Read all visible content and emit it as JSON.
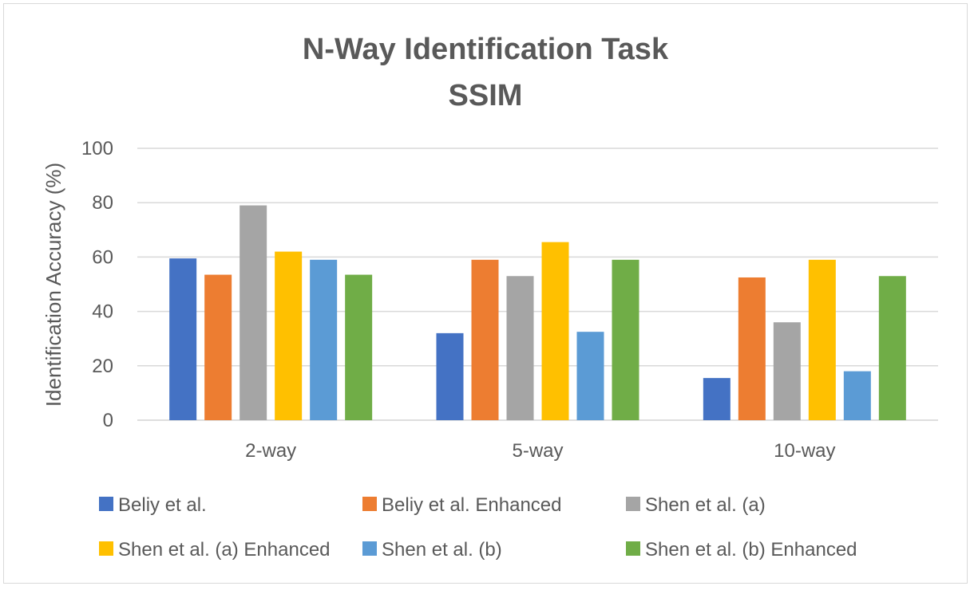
{
  "chart_data": {
    "type": "bar",
    "title": "N-Way Identification Task",
    "subtitle": "SSIM",
    "xlabel": "",
    "ylabel": "Identification Accuracy (%)",
    "ylim": [
      0,
      100
    ],
    "yticks": [
      "0",
      "20",
      "40",
      "60",
      "80",
      "100"
    ],
    "grid": true,
    "legend_position": "bottom",
    "categories": [
      "2-way",
      "5-way",
      "10-way"
    ],
    "series": [
      {
        "name": "Beliy et al.",
        "color": "#4472C4",
        "values": [
          59.5,
          32,
          15.5
        ]
      },
      {
        "name": "Beliy et al. Enhanced",
        "color": "#ED7D31",
        "values": [
          53.5,
          59,
          52.5
        ]
      },
      {
        "name": "Shen et al. (a)",
        "color": "#A5A5A5",
        "values": [
          79,
          53,
          36
        ]
      },
      {
        "name": "Shen et al. (a) Enhanced",
        "color": "#FFC000",
        "values": [
          62,
          65.5,
          59
        ]
      },
      {
        "name": "Shen et al. (b)",
        "color": "#5B9BD5",
        "values": [
          59,
          32.5,
          18
        ]
      },
      {
        "name": "Shen et al. (b) Enhanced",
        "color": "#70AD47",
        "values": [
          53.5,
          59,
          53
        ]
      }
    ]
  }
}
